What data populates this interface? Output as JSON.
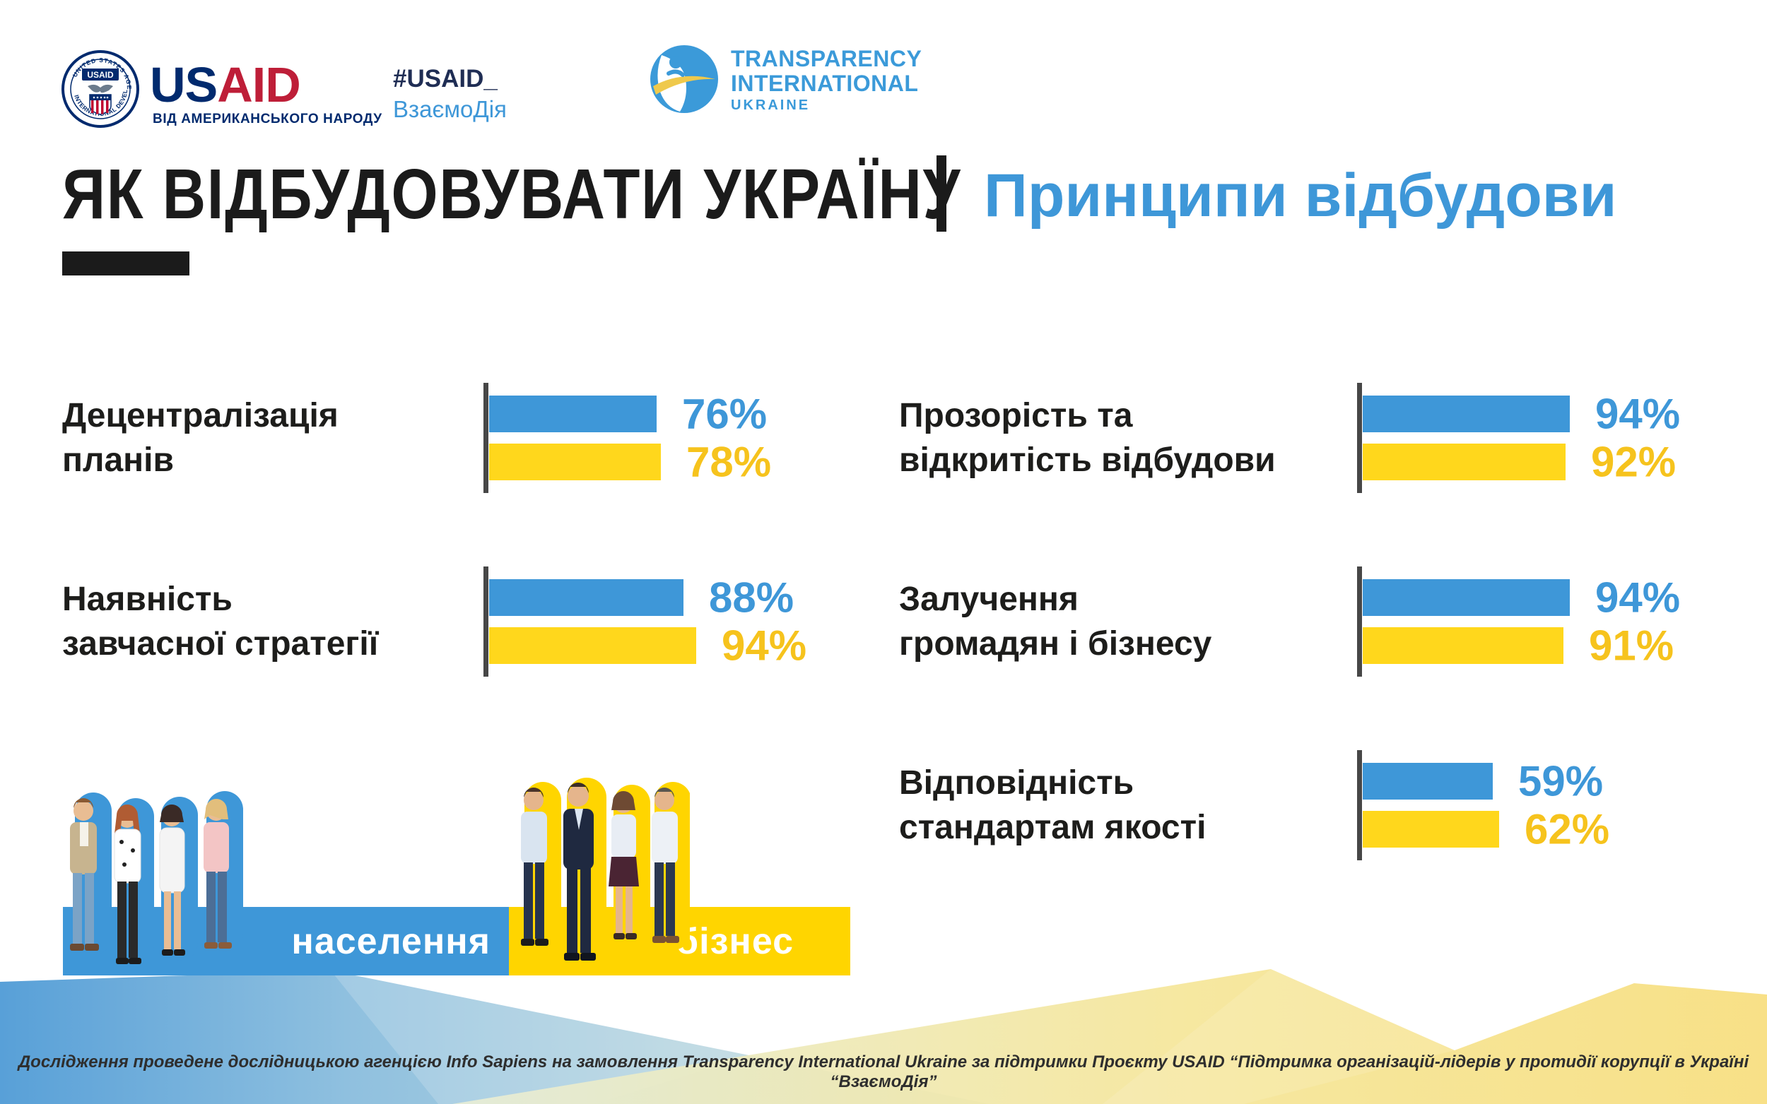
{
  "colors": {
    "blue": "#3E97D8",
    "yellow_bar": "#FFD71C",
    "yellow_text": "#F6C31D",
    "band_yellow": "#FFD500",
    "navy": "#002A6E",
    "usaid_red": "#BE1E38",
    "ti_blue": "#3B9AD9"
  },
  "header": {
    "usaid_logo": {
      "seal_label": "USAID",
      "seal_top": "UNITED STATES AGENCY",
      "seal_bottom": "INTERNATIONAL DEVELOPMENT",
      "wordmark_us": "US",
      "wordmark_aid": "AID",
      "tagline": "ВІД АМЕРИКАНСЬКОГО НАРОДУ"
    },
    "hashtag_line1": "#USAID_",
    "hashtag_line2": "ВзаємоДія",
    "ti_logo": {
      "line1": "TRANSPARENCY",
      "line2": "INTERNATIONAL",
      "line3": "UKRAINE"
    }
  },
  "title": {
    "black": "ЯК ВІДБУДОВУВАТИ УКРАЇНУ",
    "blue": "Принципи відбудови"
  },
  "chart_data": {
    "type": "bar",
    "orientation": "horizontal",
    "unit": "%",
    "xlim": [
      0,
      100
    ],
    "grid": false,
    "legend_position": "bottom-left",
    "categories": [
      "Децентралізація планів",
      "Наявність завчасної стратегії",
      "Прозорість та відкритість відбудови",
      "Залучення громадян і бізнесу",
      "Відповідність стандартам якості"
    ],
    "series": [
      {
        "name": "населення",
        "color": "#3E97D8",
        "values": [
          76,
          88,
          94,
          94,
          59
        ]
      },
      {
        "name": "бізнес",
        "color": "#FFD71C",
        "values": [
          78,
          94,
          92,
          91,
          62
        ]
      }
    ]
  },
  "rows": [
    {
      "line1": "Децентралізація",
      "line2": "планів"
    },
    {
      "line1": "Наявність",
      "line2": "завчасної стратегії"
    },
    {
      "line1": "Прозорість та",
      "line2": "відкритість відбудови"
    },
    {
      "line1": "Залучення",
      "line2": "громадян і бізнесу"
    },
    {
      "line1": "Відповідність",
      "line2": "стандартам якості"
    }
  ],
  "legend": {
    "population": "населення",
    "business": "бізнес"
  },
  "footer": {
    "text": "Дослідження проведене дослідницькою агенцією Info Sapiens на замовлення Transparency International Ukraine за підтримки Проєкту USAID “Підтримка організацій-лідерів у протидії корупції в Україні “ВзаємоДія”"
  }
}
